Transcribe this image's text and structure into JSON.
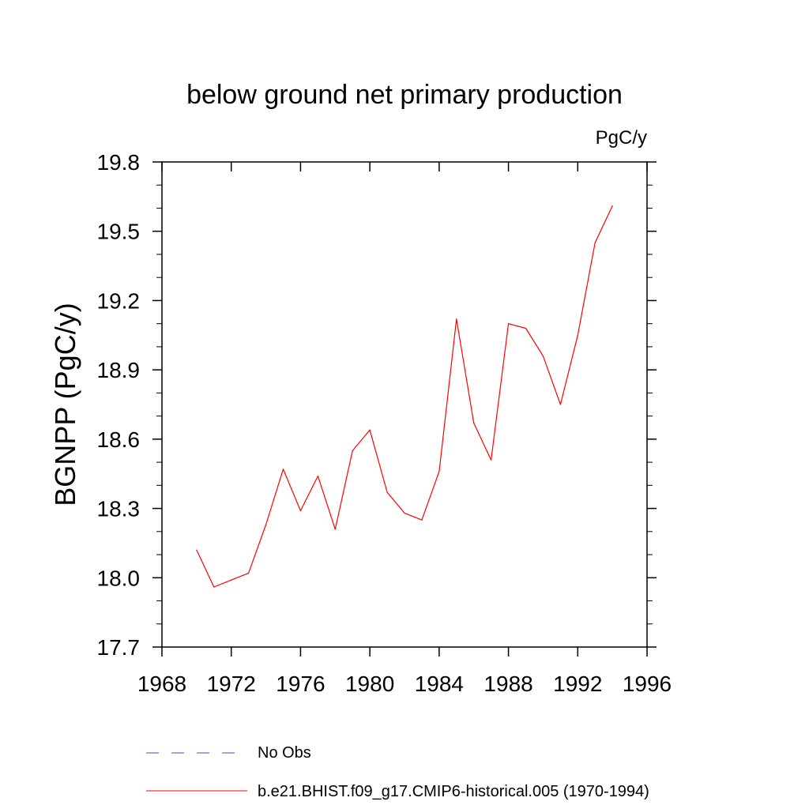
{
  "chart_data": {
    "type": "line",
    "title": "below ground net primary production",
    "units_label": "PgC/y",
    "ylabel": "BGNPP  (PgC/y)",
    "xlabel": "",
    "xlim": [
      1968,
      1996
    ],
    "ylim": [
      17.7,
      19.8
    ],
    "x_ticks": [
      1968,
      1972,
      1976,
      1980,
      1984,
      1988,
      1992,
      1996
    ],
    "y_ticks": [
      17.7,
      18.0,
      18.3,
      18.6,
      18.9,
      19.2,
      19.5,
      19.8
    ],
    "x_tick_labels": [
      "1968",
      "1972",
      "1976",
      "1980",
      "1984",
      "1988",
      "1992",
      "1996"
    ],
    "y_tick_labels": [
      "17.7",
      "18.0",
      "18.3",
      "18.6",
      "18.9",
      "19.2",
      "19.5",
      "19.8"
    ],
    "grid": false,
    "legend_position": "bottom",
    "series": [
      {
        "name": "b.e21.BHIST.f09_g17.CMIP6-historical.005 (1970-1994)",
        "color": "#ff0000",
        "style": "solid",
        "x": [
          1970,
          1971,
          1972,
          1973,
          1974,
          1975,
          1976,
          1977,
          1978,
          1979,
          1980,
          1981,
          1982,
          1983,
          1984,
          1985,
          1986,
          1987,
          1988,
          1989,
          1990,
          1991,
          1992,
          1993,
          1994
        ],
        "y": [
          18.12,
          17.96,
          17.99,
          18.02,
          18.23,
          18.47,
          18.29,
          18.44,
          18.21,
          18.55,
          18.64,
          18.37,
          18.28,
          18.25,
          18.46,
          19.12,
          18.67,
          18.51,
          19.1,
          19.08,
          18.96,
          18.75,
          19.05,
          19.45,
          19.61
        ]
      }
    ],
    "legend": [
      {
        "label": "No Obs",
        "color": "#4b4bb4",
        "style": "dashed"
      },
      {
        "label": "b.e21.BHIST.f09_g17.CMIP6-historical.005 (1970-1994)",
        "color": "#ff0000",
        "style": "solid"
      }
    ]
  }
}
